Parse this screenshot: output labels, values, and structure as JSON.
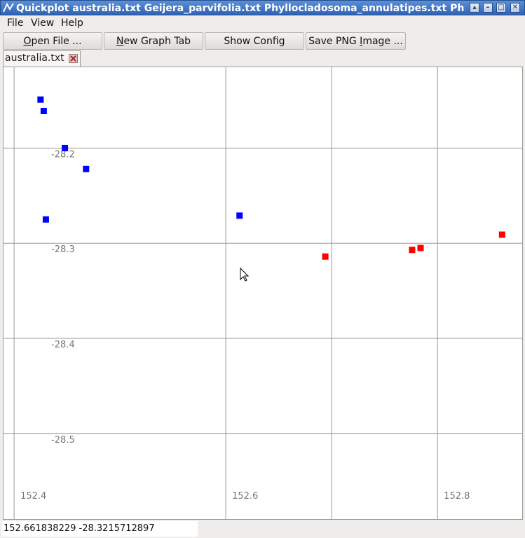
{
  "window": {
    "title": "Quickplot australia.txt Geijera_parvifolia.txt Phyllocladosoma_annulatipes.txt Phyllo"
  },
  "menu": [
    {
      "label": "File"
    },
    {
      "label": "View"
    },
    {
      "label": "Help"
    }
  ],
  "toolbar": {
    "open_file": {
      "u": "O",
      "rest": "pen File ..."
    },
    "new_graph_tab": {
      "u": "N",
      "rest": "ew Graph Tab"
    },
    "show_config": {
      "label": "Show Config"
    },
    "save_png": {
      "pre": "Save PNG ",
      "u": "I",
      "rest": "mage ..."
    }
  },
  "tabs": [
    {
      "label": "australia.txt"
    }
  ],
  "status": {
    "coordinates": "152.661838229  -28.3215712897"
  },
  "colors": {
    "series_blue": "#0000ff",
    "series_red": "#ff0000",
    "grid": "#999999",
    "tick_label": "#777777"
  },
  "chart_data": {
    "type": "scatter",
    "xlim": [
      152.39,
      152.88
    ],
    "ylim": [
      -28.59,
      -28.115
    ],
    "x_ticks": [
      {
        "value": 152.4,
        "label": "152.4"
      },
      {
        "value": 152.6,
        "label": "152.6"
      },
      {
        "value": 152.8,
        "label": "152.8"
      }
    ],
    "y_ticks": [
      {
        "value": -28.2,
        "label": "-28.2"
      },
      {
        "value": -28.3,
        "label": "-28.3"
      },
      {
        "value": -28.4,
        "label": "-28.4"
      },
      {
        "value": -28.5,
        "label": "-28.5"
      }
    ],
    "extra_grid_x": [
      152.7
    ],
    "grid": true,
    "series": [
      {
        "color": "#0000ff",
        "points": [
          [
            152.425,
            -28.149
          ],
          [
            152.428,
            -28.161
          ],
          [
            152.448,
            -28.2
          ],
          [
            152.468,
            -28.222
          ],
          [
            152.43,
            -28.275
          ],
          [
            152.613,
            -28.271
          ]
        ]
      },
      {
        "color": "#ff0000",
        "points": [
          [
            152.694,
            -28.314
          ],
          [
            152.861,
            -28.291
          ],
          [
            152.784,
            -28.305
          ],
          [
            152.776,
            -28.307
          ]
        ]
      }
    ]
  }
}
